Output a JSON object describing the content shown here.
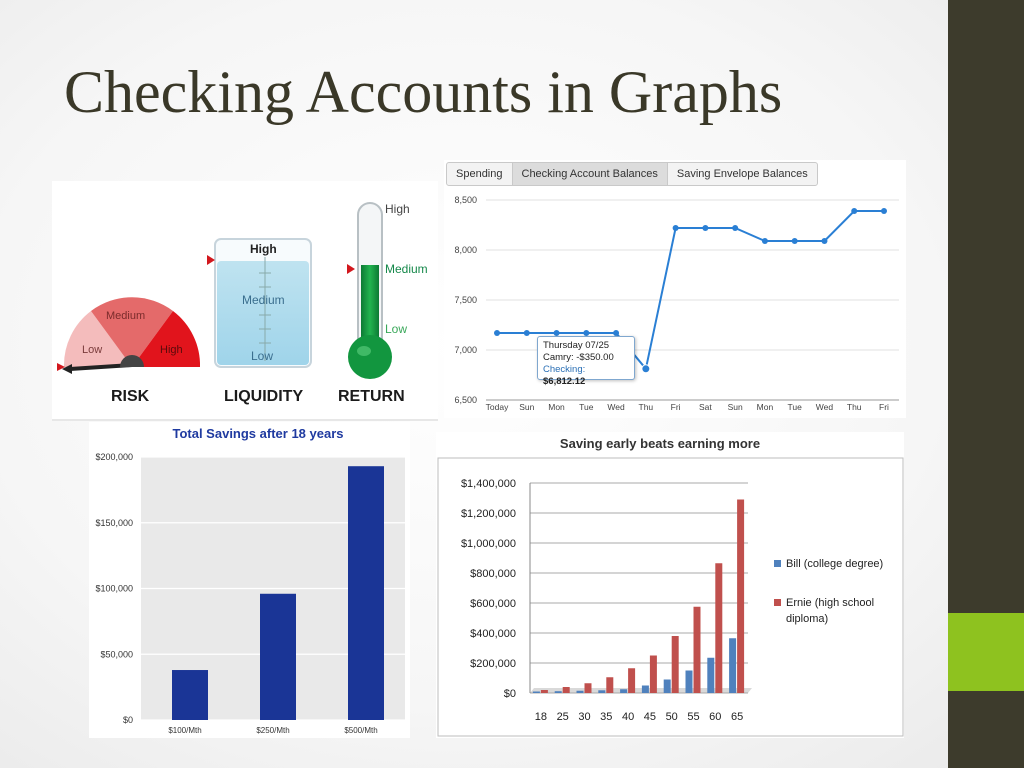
{
  "slide": {
    "title": "Checking Accounts in Graphs",
    "colors": {
      "sidebar": "#3d3b2c",
      "accent": "#8ec21f",
      "title": "#3a3828"
    }
  },
  "chart_data": [
    {
      "type": "gauge",
      "labels": {
        "risk_levels": [
          "Low",
          "Medium",
          "High"
        ],
        "liquidity_levels": [
          "High",
          "Medium",
          "Low"
        ],
        "return_levels": [
          "High",
          "Medium",
          "Low"
        ],
        "captions": [
          "RISK",
          "LIQUIDITY",
          "RETURN"
        ]
      },
      "risk_value": "Low",
      "liquidity_value": "High",
      "return_value": "Medium"
    },
    {
      "type": "line",
      "tabs": [
        "Spending",
        "Checking Account Balances",
        "Saving Envelope Balances"
      ],
      "active_tab": "Checking Account Balances",
      "categories": [
        "Today",
        "Sun",
        "Mon",
        "Tue",
        "Wed",
        "Thu",
        "Fri",
        "Sat",
        "Sun",
        "Mon",
        "Tue",
        "Wed",
        "Thu",
        "Fri"
      ],
      "values": [
        7170,
        7170,
        7170,
        7170,
        7170,
        6812.12,
        8220,
        8220,
        8220,
        8090,
        8090,
        8090,
        8390,
        8390
      ],
      "yticks": [
        "8,500",
        "8,000",
        "7,500",
        "7,000",
        "6,500"
      ],
      "ylim": [
        6500,
        8500
      ],
      "tooltip": {
        "date": "Thursday 07/25",
        "item": "Camry: -$350.00",
        "label": "Checking:",
        "value": "$6,812.12"
      },
      "color": "#2a7fd4"
    },
    {
      "type": "bar",
      "title": "Total Savings after 18 years",
      "categories": [
        "$100/Mth",
        "$250/Mth",
        "$500/Mth"
      ],
      "values": [
        38000,
        96000,
        193000
      ],
      "yticks": [
        "$200,000",
        "$150,000",
        "$100,000",
        "$50,000",
        "$0"
      ],
      "ylim": [
        0,
        200000
      ],
      "color": "#1a3596"
    },
    {
      "type": "bar",
      "title": "Saving early beats earning more",
      "categories": [
        "18",
        "25",
        "30",
        "35",
        "40",
        "45",
        "50",
        "55",
        "60",
        "65"
      ],
      "series": [
        {
          "name": "Bill (college degree)",
          "values": [
            10000,
            12000,
            15000,
            18000,
            25000,
            50000,
            90000,
            150000,
            235000,
            365000
          ],
          "color": "#4f81bd"
        },
        {
          "name": "Ernie (high school diploma)",
          "values": [
            20000,
            40000,
            65000,
            105000,
            165000,
            250000,
            380000,
            575000,
            865000,
            1290000
          ],
          "color": "#c0504d"
        }
      ],
      "yticks": [
        "$1,400,000",
        "$1,200,000",
        "$1,000,000",
        "$800,000",
        "$600,000",
        "$400,000",
        "$200,000",
        "$0"
      ],
      "ylim": [
        0,
        1400000
      ],
      "legend": "right"
    }
  ]
}
